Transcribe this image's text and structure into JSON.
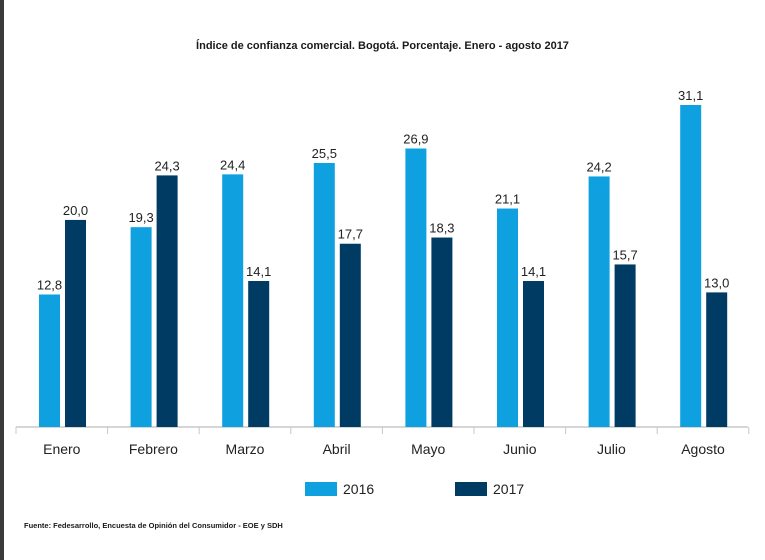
{
  "chart_data": {
    "type": "bar",
    "title": "Índice de confianza comercial. Bogotá. Porcentaje.  Enero - agosto 2017",
    "categories": [
      "Enero",
      "Febrero",
      "Marzo",
      "Abril",
      "Mayo",
      "Junio",
      "Julio",
      "Agosto"
    ],
    "series": [
      {
        "name": "2016",
        "color": "#0fa0e0",
        "values": [
          12.8,
          19.3,
          24.4,
          25.5,
          26.9,
          21.1,
          24.2,
          31.1
        ],
        "labels": [
          "12,8",
          "19,3",
          "24,4",
          "25,5",
          "26,9",
          "21,1",
          "24,2",
          "31,1"
        ]
      },
      {
        "name": "2017",
        "color": "#003b63",
        "values": [
          20.0,
          24.3,
          14.1,
          17.7,
          18.3,
          14.1,
          15.7,
          13.0
        ],
        "labels": [
          "20,0",
          "24,3",
          "14,1",
          "17,7",
          "18,3",
          "14,1",
          "15,7",
          "13,0"
        ]
      }
    ],
    "xlabel": "",
    "ylabel": "",
    "ylim": [
      0,
      31.1
    ],
    "grid": false,
    "legend_position": "bottom"
  },
  "source": "Fuente: Fedesarrollo, Encuesta de Opinión del Consumidor - EOE y SDH"
}
